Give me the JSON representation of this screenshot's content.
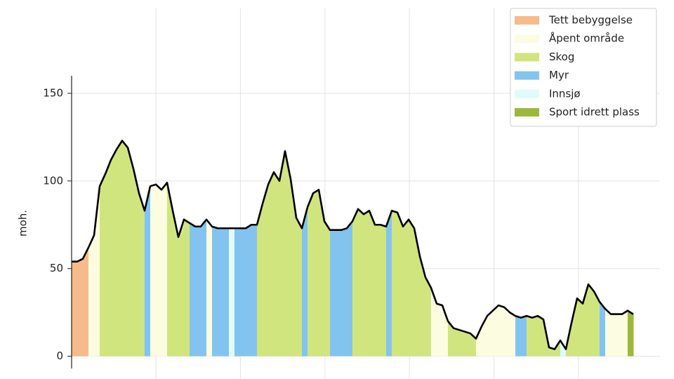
{
  "chart_data": {
    "type": "profile",
    "y_label": "moh.",
    "ylim": [
      -7,
      160
    ],
    "yticks": [
      0,
      50,
      100,
      150
    ],
    "grid": true,
    "legend": "upper right",
    "line_color": "#000000",
    "series": [
      {
        "name": "Tett bebyggelse",
        "color": "#f6bb8a"
      },
      {
        "name": "Åpent område",
        "color": "#fcfce0"
      },
      {
        "name": "Skog",
        "color": "#d1e57f"
      },
      {
        "name": "Myr",
        "color": "#82c4ef"
      },
      {
        "name": "Innsjø",
        "color": "#e0fbfb"
      },
      {
        "name": "Sport idrett plass",
        "color": "#9cb83a"
      }
    ],
    "values": [
      54,
      54,
      55.6,
      62,
      69,
      97,
      104,
      112,
      118,
      123,
      119,
      107,
      93,
      83,
      97,
      98,
      95,
      99,
      83,
      68,
      78,
      76,
      74,
      74,
      78,
      74,
      73,
      73,
      73,
      73,
      73,
      73,
      75,
      75,
      87,
      98,
      105,
      100,
      117,
      101,
      79,
      73,
      85,
      93,
      95,
      77,
      72,
      72,
      72,
      73,
      77,
      84,
      81,
      83,
      75,
      75,
      74,
      83,
      82,
      74,
      78,
      73,
      57,
      45,
      39,
      30,
      29,
      20,
      16,
      15,
      14,
      13,
      10,
      17,
      23,
      26,
      29,
      28,
      25,
      23,
      22,
      23,
      22,
      23,
      21,
      5,
      4,
      9,
      4,
      19,
      33,
      30,
      41,
      37,
      31,
      27,
      24,
      24,
      24,
      26,
      24
    ],
    "cover": [
      0,
      0,
      0,
      1,
      1,
      2,
      2,
      2,
      2,
      2,
      2,
      2,
      2,
      3,
      1,
      1,
      1,
      2,
      2,
      2,
      2,
      3,
      3,
      3,
      1,
      3,
      3,
      3,
      4,
      3,
      3,
      3,
      3,
      2,
      2,
      2,
      2,
      2,
      2,
      2,
      2,
      3,
      2,
      2,
      2,
      2,
      3,
      3,
      3,
      3,
      2,
      2,
      2,
      2,
      2,
      2,
      3,
      2,
      2,
      2,
      2,
      2,
      2,
      2,
      1,
      1,
      1,
      2,
      2,
      2,
      2,
      2,
      1,
      1,
      1,
      1,
      1,
      1,
      1,
      3,
      3,
      2,
      2,
      2,
      2,
      2,
      2,
      4,
      2,
      2,
      2,
      2,
      2,
      2,
      3,
      1,
      1,
      1,
      1,
      5
    ]
  }
}
